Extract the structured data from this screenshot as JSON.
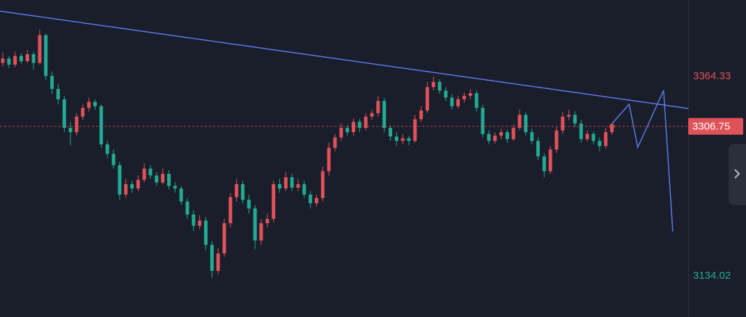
{
  "chart_data": {
    "type": "candlestick",
    "up_color": "#e0525a",
    "down_color": "#22ab94",
    "xlim": [
      -0.45,
      111.4
    ],
    "ylim": [
      3086.68,
      3452.6
    ],
    "yticks": [
      3134.02,
      3364.33
    ],
    "ytick_colors": [
      "#22ab94",
      "#e0525a"
    ],
    "last_price": 3306.75,
    "ohlc": [
      [
        3380,
        3392,
        3376,
        3385
      ],
      [
        3385,
        3388,
        3374,
        3378
      ],
      [
        3378,
        3393,
        3375,
        3388
      ],
      [
        3388,
        3391,
        3379,
        3382
      ],
      [
        3382,
        3395,
        3380,
        3390
      ],
      [
        3390,
        3393,
        3372,
        3380
      ],
      [
        3380,
        3418,
        3378,
        3412
      ],
      [
        3412,
        3414,
        3360,
        3365
      ],
      [
        3365,
        3370,
        3344,
        3350
      ],
      [
        3350,
        3356,
        3332,
        3338
      ],
      [
        3338,
        3342,
        3300,
        3305
      ],
      [
        3305,
        3312,
        3285,
        3300
      ],
      [
        3300,
        3322,
        3296,
        3318
      ],
      [
        3318,
        3332,
        3314,
        3328
      ],
      [
        3328,
        3340,
        3324,
        3335
      ],
      [
        3335,
        3338,
        3326,
        3330
      ],
      [
        3330,
        3332,
        3282,
        3286
      ],
      [
        3286,
        3290,
        3270,
        3275
      ],
      [
        3275,
        3280,
        3258,
        3262
      ],
      [
        3262,
        3266,
        3222,
        3228
      ],
      [
        3228,
        3246,
        3224,
        3240
      ],
      [
        3240,
        3244,
        3230,
        3235
      ],
      [
        3235,
        3250,
        3232,
        3245
      ],
      [
        3245,
        3264,
        3242,
        3258
      ],
      [
        3258,
        3262,
        3246,
        3250
      ],
      [
        3250,
        3254,
        3238,
        3242
      ],
      [
        3242,
        3258,
        3240,
        3252
      ],
      [
        3252,
        3256,
        3234,
        3238
      ],
      [
        3238,
        3242,
        3230,
        3235
      ],
      [
        3235,
        3238,
        3216,
        3220
      ],
      [
        3220,
        3224,
        3200,
        3205
      ],
      [
        3205,
        3210,
        3186,
        3192
      ],
      [
        3192,
        3204,
        3188,
        3198
      ],
      [
        3198,
        3202,
        3164,
        3170
      ],
      [
        3170,
        3174,
        3132,
        3140
      ],
      [
        3140,
        3166,
        3136,
        3160
      ],
      [
        3160,
        3200,
        3156,
        3195
      ],
      [
        3195,
        3230,
        3190,
        3225
      ],
      [
        3225,
        3246,
        3220,
        3240
      ],
      [
        3240,
        3244,
        3218,
        3222
      ],
      [
        3222,
        3228,
        3206,
        3212
      ],
      [
        3212,
        3216,
        3165,
        3175
      ],
      [
        3175,
        3200,
        3170,
        3195
      ],
      [
        3195,
        3206,
        3190,
        3200
      ],
      [
        3200,
        3244,
        3196,
        3240
      ],
      [
        3240,
        3246,
        3230,
        3235
      ],
      [
        3235,
        3254,
        3232,
        3248
      ],
      [
        3248,
        3252,
        3232,
        3236
      ],
      [
        3236,
        3246,
        3232,
        3240
      ],
      [
        3240,
        3244,
        3224,
        3228
      ],
      [
        3228,
        3232,
        3212,
        3218
      ],
      [
        3218,
        3228,
        3214,
        3224
      ],
      [
        3224,
        3260,
        3220,
        3255
      ],
      [
        3255,
        3288,
        3250,
        3282
      ],
      [
        3282,
        3298,
        3278,
        3294
      ],
      [
        3294,
        3310,
        3290,
        3305
      ],
      [
        3305,
        3308,
        3296,
        3300
      ],
      [
        3300,
        3316,
        3296,
        3312
      ],
      [
        3312,
        3315,
        3300,
        3305
      ],
      [
        3305,
        3322,
        3302,
        3318
      ],
      [
        3318,
        3326,
        3314,
        3322
      ],
      [
        3322,
        3342,
        3318,
        3336
      ],
      [
        3336,
        3340,
        3300,
        3305
      ],
      [
        3305,
        3308,
        3290,
        3295
      ],
      [
        3295,
        3300,
        3284,
        3290
      ],
      [
        3290,
        3298,
        3286,
        3293
      ],
      [
        3293,
        3296,
        3285,
        3290
      ],
      [
        3290,
        3320,
        3288,
        3315
      ],
      [
        3315,
        3330,
        3312,
        3325
      ],
      [
        3325,
        3358,
        3322,
        3352
      ],
      [
        3352,
        3364,
        3348,
        3358
      ],
      [
        3358,
        3361,
        3344,
        3348
      ],
      [
        3348,
        3352,
        3336,
        3340
      ],
      [
        3340,
        3344,
        3326,
        3330
      ],
      [
        3330,
        3342,
        3327,
        3338
      ],
      [
        3338,
        3346,
        3334,
        3342
      ],
      [
        3342,
        3350,
        3338,
        3345
      ],
      [
        3345,
        3348,
        3324,
        3328
      ],
      [
        3328,
        3332,
        3294,
        3298
      ],
      [
        3298,
        3302,
        3286,
        3290
      ],
      [
        3290,
        3300,
        3287,
        3296
      ],
      [
        3296,
        3304,
        3292,
        3300
      ],
      [
        3300,
        3303,
        3288,
        3292
      ],
      [
        3292,
        3309,
        3290,
        3305
      ],
      [
        3305,
        3326,
        3302,
        3320
      ],
      [
        3320,
        3323,
        3296,
        3300
      ],
      [
        3300,
        3304,
        3286,
        3290
      ],
      [
        3290,
        3294,
        3268,
        3272
      ],
      [
        3272,
        3276,
        3248,
        3255
      ],
      [
        3255,
        3284,
        3252,
        3280
      ],
      [
        3280,
        3306,
        3276,
        3302
      ],
      [
        3302,
        3323,
        3298,
        3318
      ],
      [
        3318,
        3326,
        3314,
        3320
      ],
      [
        3320,
        3324,
        3306,
        3310
      ],
      [
        3310,
        3314,
        3288,
        3292
      ],
      [
        3292,
        3302,
        3289,
        3298
      ],
      [
        3298,
        3301,
        3286,
        3290
      ],
      [
        3290,
        3294,
        3278,
        3284
      ],
      [
        3284,
        3305,
        3281,
        3300
      ],
      [
        3300,
        3310,
        3297,
        3306.75
      ]
    ],
    "trendline": {
      "color": "#5b7bf0",
      "x": [
        -0.45,
        111.4
      ],
      "y": [
        3439.8,
        3327.4
      ]
    },
    "projection": {
      "color": "#5b7bf0",
      "x": [
        99,
        101.8,
        103.2,
        107.4,
        108.9
      ],
      "y": [
        3309.8,
        3332.2,
        3282.5,
        3348.3,
        3185.4
      ]
    }
  }
}
